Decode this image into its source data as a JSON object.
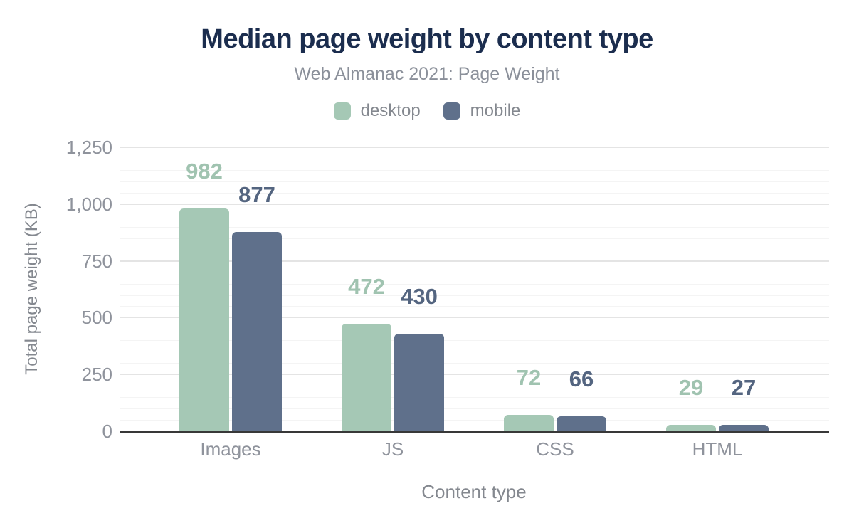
{
  "chart_data": {
    "type": "bar",
    "title": "Median page weight by content type",
    "subtitle": "Web Almanac 2021: Page Weight",
    "xlabel": "Content type",
    "ylabel": "Total page weight (KB)",
    "categories": [
      "Images",
      "JS",
      "CSS",
      "HTML"
    ],
    "series": [
      {
        "name": "desktop",
        "color": "#a5c8b5",
        "label_color": "#a0c3b0",
        "values": [
          982,
          472,
          72,
          29
        ]
      },
      {
        "name": "mobile",
        "color": "#5f708b",
        "label_color": "#546580",
        "values": [
          877,
          430,
          66,
          27
        ]
      }
    ],
    "ylim": [
      0,
      1250
    ],
    "yticks": [
      0,
      250,
      500,
      750,
      1000,
      1250
    ],
    "ytick_labels": [
      "0",
      "250",
      "500",
      "750",
      "1,000",
      "1,250"
    ],
    "minor_grid_step": 50,
    "grid": true,
    "legend_position": "top",
    "show_data_labels": true,
    "colors": {
      "title": "#1b2d4e",
      "subtitle": "#8b909a",
      "tick_text": "#8f939c",
      "axis_title_text": "#84888f",
      "grid_major": "#e4e4e4",
      "grid_minor": "#f4f4f4",
      "axis_line": "#383838"
    }
  }
}
